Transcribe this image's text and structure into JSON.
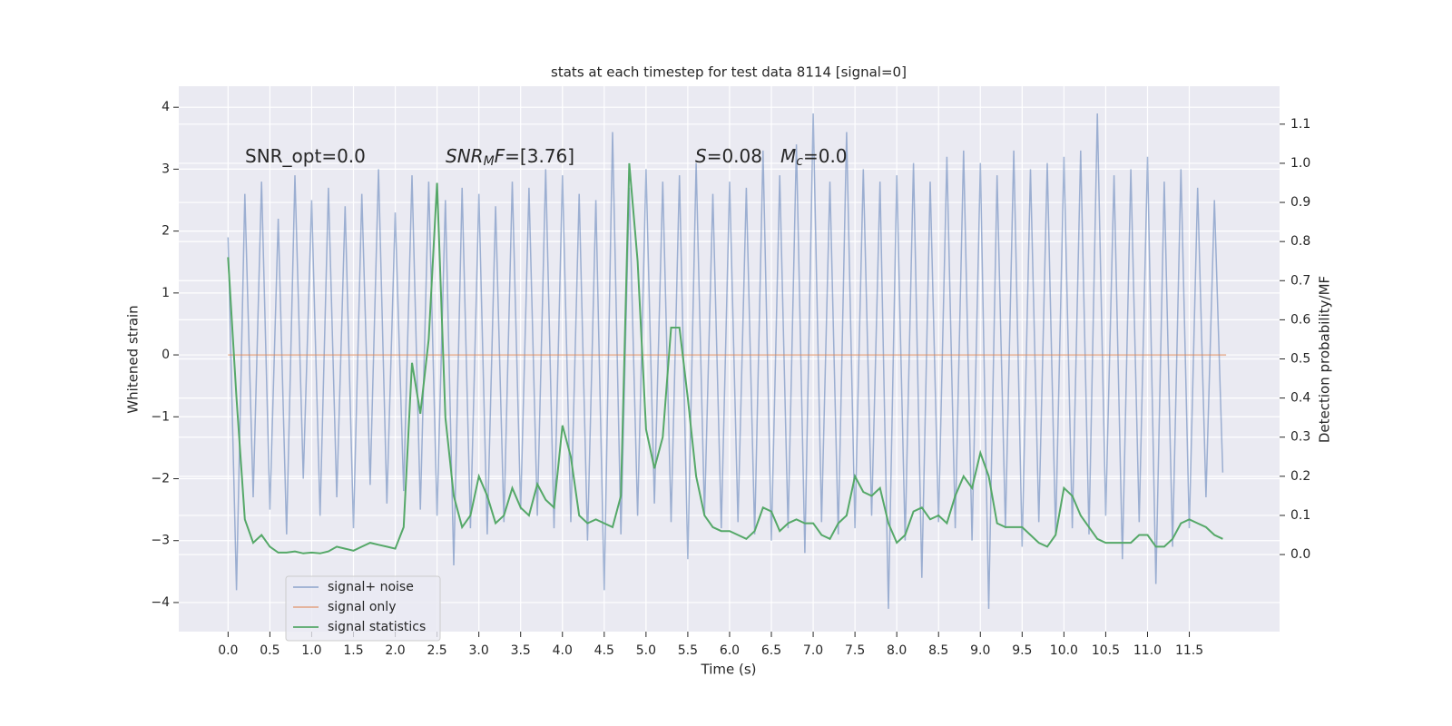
{
  "chart_data": {
    "type": "line",
    "title": "stats at each timestep for test data 8114 [signal=0]",
    "xlabel": "Time (s)",
    "ylabel": "Whitened strain",
    "y2label": "Detection probability/MF",
    "annotations": [
      {
        "segments": [
          [
            "SNR_opt=0.0",
            "normal"
          ]
        ]
      },
      {
        "segments": [
          [
            "SNR",
            "italic"
          ],
          [
            "M",
            "sub"
          ],
          [
            "F",
            "italic"
          ],
          [
            "=[3.76]",
            "normal"
          ]
        ]
      },
      {
        "segments": [
          [
            "S",
            "italic"
          ],
          [
            "=0.08",
            "normal"
          ]
        ]
      },
      {
        "segments": [
          [
            "M",
            "italic"
          ],
          [
            "c",
            "sub"
          ],
          [
            "=0.0",
            "normal"
          ]
        ]
      }
    ],
    "x": [
      0,
      0.1,
      0.2,
      0.3,
      0.4,
      0.5,
      0.6,
      0.7,
      0.8,
      0.9,
      1,
      1.1,
      1.2,
      1.3,
      1.4,
      1.5,
      1.6,
      1.7,
      1.8,
      1.9,
      2,
      2.1,
      2.2,
      2.3,
      2.4,
      2.5,
      2.6,
      2.7,
      2.8,
      2.9,
      3,
      3.1,
      3.2,
      3.3,
      3.4,
      3.5,
      3.6,
      3.7,
      3.8,
      3.9,
      4,
      4.1,
      4.2,
      4.3,
      4.4,
      4.5,
      4.6,
      4.7,
      4.8,
      4.9,
      5,
      5.1,
      5.2,
      5.3,
      5.4,
      5.5,
      5.6,
      5.7,
      5.8,
      5.9,
      6,
      6.1,
      6.2,
      6.3,
      6.4,
      6.5,
      6.6,
      6.7,
      6.8,
      6.9,
      7,
      7.1,
      7.2,
      7.3,
      7.4,
      7.5,
      7.6,
      7.7,
      7.8,
      7.9,
      8,
      8.1,
      8.2,
      8.3,
      8.4,
      8.5,
      8.6,
      8.7,
      8.8,
      8.9,
      9,
      9.1,
      9.2,
      9.3,
      9.4,
      9.5,
      9.6,
      9.7,
      9.8,
      9.9,
      10,
      10.1,
      10.2,
      10.3,
      10.4,
      10.5,
      10.6,
      10.7,
      10.8,
      10.9,
      11,
      11.1,
      11.2,
      11.3,
      11.4,
      11.5,
      11.6,
      11.7,
      11.8,
      11.9
    ],
    "series": [
      {
        "name": "signal+ noise",
        "color": "#4c72b0",
        "opacity": 0.5,
        "values": [
          1.9,
          -3.8,
          2.6,
          -2.3,
          2.8,
          -2.5,
          2.2,
          -2.9,
          2.9,
          -2.0,
          2.5,
          -2.6,
          2.7,
          -2.3,
          2.4,
          -2.8,
          2.6,
          -2.1,
          3.0,
          -2.4,
          2.3,
          -2.2,
          2.9,
          -2.5,
          2.8,
          -2.6,
          2.5,
          -3.4,
          2.7,
          -2.8,
          2.6,
          -2.9,
          2.4,
          -2.7,
          2.8,
          -2.5,
          2.7,
          -2.6,
          3.0,
          -2.8,
          2.9,
          -2.7,
          2.6,
          -3.0,
          2.5,
          -3.8,
          3.6,
          -2.9,
          2.7,
          -2.6,
          3.0,
          -2.4,
          2.8,
          -2.7,
          2.9,
          -3.3,
          3.1,
          -2.6,
          2.6,
          -2.8,
          2.8,
          -2.7,
          2.7,
          -2.9,
          3.3,
          -3.0,
          2.9,
          -2.8,
          3.4,
          -3.2,
          3.9,
          -2.7,
          2.8,
          -2.9,
          3.6,
          -2.8,
          3.0,
          -2.6,
          2.8,
          -4.1,
          2.9,
          -3.0,
          3.1,
          -3.6,
          2.8,
          -2.7,
          3.2,
          -2.8,
          3.3,
          -3.0,
          3.1,
          -4.1,
          2.9,
          -2.8,
          3.3,
          -3.1,
          3.0,
          -2.7,
          3.1,
          -2.9,
          3.2,
          -2.8,
          3.3,
          -2.9,
          3.9,
          -2.6,
          2.9,
          -3.3,
          3.0,
          -2.7,
          3.2,
          -3.7,
          2.8,
          -3.1,
          3.0,
          -2.8,
          2.7,
          -2.3,
          2.5,
          -1.9
        ]
      },
      {
        "name": "signal only",
        "color": "#dd8452",
        "opacity": 0.6,
        "x": [
          0,
          11.94
        ],
        "values": [
          0,
          0
        ]
      },
      {
        "name": "signal statistics",
        "color": "#55a868",
        "opacity": 1,
        "axis": "y2",
        "values": [
          0.76,
          0.4,
          0.09,
          0.03,
          0.05,
          0.02,
          0.005,
          0.005,
          0.008,
          0.003,
          0.005,
          0.003,
          0.008,
          0.02,
          0.015,
          0.01,
          0.02,
          0.03,
          0.025,
          0.02,
          0.015,
          0.07,
          0.49,
          0.36,
          0.55,
          0.95,
          0.35,
          0.15,
          0.07,
          0.1,
          0.2,
          0.15,
          0.08,
          0.1,
          0.17,
          0.12,
          0.1,
          0.18,
          0.14,
          0.12,
          0.33,
          0.25,
          0.1,
          0.08,
          0.09,
          0.08,
          0.07,
          0.15,
          1.0,
          0.75,
          0.32,
          0.22,
          0.3,
          0.58,
          0.58,
          0.4,
          0.2,
          0.1,
          0.07,
          0.06,
          0.06,
          0.05,
          0.04,
          0.06,
          0.12,
          0.11,
          0.06,
          0.08,
          0.09,
          0.08,
          0.08,
          0.05,
          0.04,
          0.08,
          0.1,
          0.2,
          0.16,
          0.15,
          0.17,
          0.08,
          0.03,
          0.05,
          0.11,
          0.12,
          0.09,
          0.1,
          0.08,
          0.15,
          0.2,
          0.17,
          0.26,
          0.2,
          0.08,
          0.07,
          0.07,
          0.07,
          0.05,
          0.03,
          0.02,
          0.05,
          0.17,
          0.15,
          0.1,
          0.07,
          0.04,
          0.03,
          0.03,
          0.03,
          0.03,
          0.05,
          0.05,
          0.02,
          0.02,
          0.04,
          0.08,
          0.09,
          0.08,
          0.07,
          0.05,
          0.04
        ]
      }
    ],
    "xlim": [
      -0.59,
      12.58
    ],
    "ylim": [
      -4.47,
      4.34
    ],
    "y2lim": [
      -0.197,
      1.197
    ],
    "xticks": [
      {
        "value": 0,
        "label": "0.0"
      },
      0.5,
      {
        "value": 1,
        "label": "1.0"
      },
      1.5,
      {
        "value": 2,
        "label": "2.0"
      },
      2.5,
      {
        "value": 3,
        "label": "3.0"
      },
      3.5,
      {
        "value": 4,
        "label": "4.0"
      },
      4.5,
      {
        "value": 5,
        "label": "5.0"
      },
      5.5,
      {
        "value": 6,
        "label": "6.0"
      },
      6.5,
      {
        "value": 7,
        "label": "7.0"
      },
      7.5,
      {
        "value": 8,
        "label": "8.0"
      },
      8.5,
      {
        "value": 9,
        "label": "9.0"
      },
      9.5,
      {
        "value": 10,
        "label": "10.0"
      },
      10.5,
      {
        "value": 11,
        "label": "11.0"
      },
      11.5
    ],
    "yticks": [
      {
        "value": -4,
        "label": "−4"
      },
      {
        "value": -3,
        "label": "−3"
      },
      {
        "value": -2,
        "label": "−2"
      },
      {
        "value": -1,
        "label": "−1"
      },
      0,
      1,
      2,
      3,
      4
    ],
    "y2ticks": [
      {
        "value": 0,
        "label": "0.0"
      },
      0.1,
      0.2,
      0.3,
      0.4,
      0.5,
      0.6,
      0.7,
      0.8,
      0.9,
      {
        "value": 1,
        "label": "1.0"
      },
      1.1
    ],
    "grid": true,
    "legend": "lower left"
  }
}
